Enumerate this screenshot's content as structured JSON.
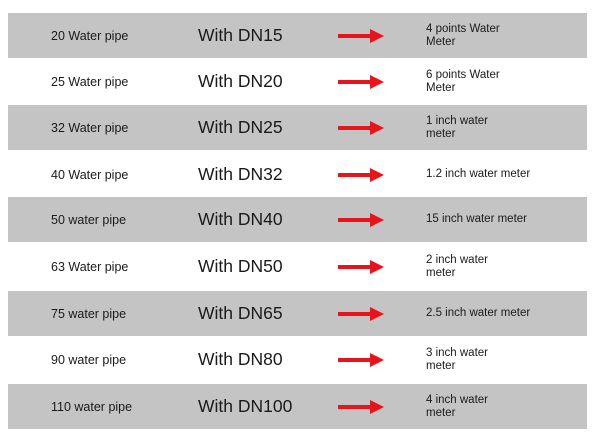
{
  "colors": {
    "shaded_row": "#c4c4c4",
    "plain_row": "#ffffff",
    "arrow": "#e8141b",
    "text": "#1a1a1a"
  },
  "rows": [
    {
      "pipe": "20 Water pipe",
      "dn": "With DN15",
      "meter": "4 points Water Meter",
      "shaded": true
    },
    {
      "pipe": "25 Water pipe",
      "dn": "With DN20",
      "meter": "6 points Water Meter",
      "shaded": false
    },
    {
      "pipe": "32 Water pipe",
      "dn": "With DN25",
      "meter": "1 inch water meter",
      "shaded": true
    },
    {
      "pipe": "40 Water pipe",
      "dn": "With DN32",
      "meter": "1.2 inch water meter",
      "shaded": false
    },
    {
      "pipe": "50 water pipe",
      "dn": "With DN40",
      "meter": "15 inch water meter",
      "shaded": true
    },
    {
      "pipe": "63 Water pipe",
      "dn": "With DN50",
      "meter": "2 inch water meter",
      "shaded": false
    },
    {
      "pipe": "75 water pipe",
      "dn": "With DN65",
      "meter": "2.5 inch water meter",
      "shaded": true
    },
    {
      "pipe": "90 water pipe",
      "dn": "With DN80",
      "meter": "3 inch water meter",
      "shaded": false
    },
    {
      "pipe": "110 water pipe",
      "dn": "With DN100",
      "meter": "4 inch water meter",
      "shaded": true
    }
  ]
}
